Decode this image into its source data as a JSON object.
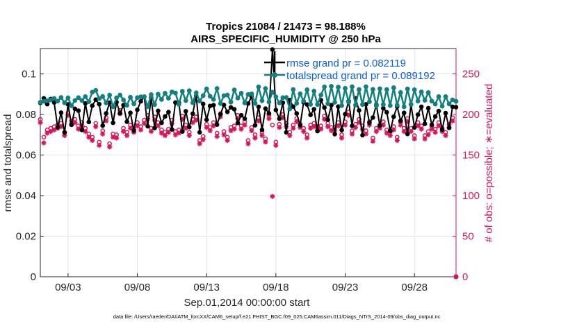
{
  "chart_data": {
    "type": "line",
    "title": "Tropics 21084 / 21473 = 98.188%",
    "subtitle": "AIRS_SPECIFIC_HUMIDITY @ 250 hPa",
    "xlabel": "Sep.01,2014 00:00:00 start",
    "ylabel_left": "rmse and totalspread",
    "ylabel_right": "# of obs: o=possible; ∗=evaluated",
    "xlim": [
      1.0,
      31.0
    ],
    "ylim_left": [
      0,
      0.1125
    ],
    "ylim_right": [
      0,
      281.25
    ],
    "x_ticks": [
      {
        "x": 3,
        "label": "09/03"
      },
      {
        "x": 8,
        "label": "09/08"
      },
      {
        "x": 13,
        "label": "09/13"
      },
      {
        "x": 18,
        "label": "09/18"
      },
      {
        "x": 23,
        "label": "09/23"
      },
      {
        "x": 28,
        "label": "09/28"
      }
    ],
    "y_ticks_left": [
      {
        "v": 0,
        "label": "0"
      },
      {
        "v": 0.02,
        "label": "0.02"
      },
      {
        "v": 0.04,
        "label": "0.04"
      },
      {
        "v": 0.06,
        "label": "0.06"
      },
      {
        "v": 0.08,
        "label": "0.08"
      },
      {
        "v": 0.1,
        "label": "0.1"
      }
    ],
    "y_ticks_right": [
      {
        "v": 0,
        "label": "0"
      },
      {
        "v": 50,
        "label": "50"
      },
      {
        "v": 100,
        "label": "100"
      },
      {
        "v": 150,
        "label": "150"
      },
      {
        "v": 200,
        "label": "200"
      },
      {
        "v": 250,
        "label": "250"
      }
    ],
    "grid": true,
    "legend_placement": "top-right",
    "colors": {
      "rmse": "#000000",
      "totalspread": "#128080",
      "obs": "#d6175c",
      "legend_text": "#0a5fe0",
      "grid": "#e4e4e4"
    },
    "series": [
      {
        "name": "rmse grand pr = 0.082119",
        "axis": "left",
        "marker": "star",
        "values": [
          0.0857,
          0.088,
          0.0851,
          0.0876,
          0.0859,
          0.0737,
          0.0809,
          0.0711,
          0.085,
          0.0749,
          0.0828,
          0.0819,
          0.0724,
          0.0855,
          0.0763,
          0.0843,
          0.0873,
          0.0851,
          0.0745,
          0.0805,
          0.0858,
          0.0759,
          0.0861,
          0.0806,
          0.0846,
          0.0764,
          0.0808,
          0.072,
          0.0823,
          0.0865,
          0.0887,
          0.0742,
          0.0883,
          0.0733,
          0.0818,
          0.0759,
          0.079,
          0.0812,
          0.0726,
          0.0859,
          0.0859,
          0.0716,
          0.0816,
          0.0738,
          0.0804,
          0.0892,
          0.0712,
          0.0852,
          0.0774,
          0.0842,
          0.0846,
          0.075,
          0.0801,
          0.0847,
          0.0813,
          0.0835,
          0.0826,
          0.0758,
          0.0796,
          0.0779,
          0.0854,
          0.0889,
          0.0747,
          0.0838,
          0.0724,
          0.0829,
          0.0805,
          0.112,
          0.0822,
          0.0779,
          0.0858,
          0.0712,
          0.0871,
          0.0839,
          0.0805,
          0.0747,
          0.086,
          0.0849,
          0.0798,
          0.0826,
          0.0718,
          0.0871,
          0.0834,
          0.0774,
          0.0846,
          0.0703,
          0.0839,
          0.0723,
          0.0802,
          0.0866,
          0.0744,
          0.088,
          0.082,
          0.0698,
          0.085,
          0.0759,
          0.0785,
          0.0848,
          0.0745,
          0.0831,
          0.0811,
          0.0719,
          0.0789,
          0.0839,
          0.0769,
          0.0808,
          0.0704,
          0.0849,
          0.0736,
          0.0799,
          0.0838,
          0.0754,
          0.0831,
          0.0749,
          0.079,
          0.0817,
          0.0725,
          0.0807,
          0.0734,
          0.0838,
          0.0836
        ]
      },
      {
        "name": "totalspread grand pr = 0.089192",
        "axis": "left",
        "marker": "circle",
        "values": [
          0.086,
          0.0865,
          0.0868,
          0.0872,
          0.0879,
          0.0866,
          0.0884,
          0.0858,
          0.0882,
          0.0843,
          0.0869,
          0.0883,
          0.0869,
          0.0888,
          0.0863,
          0.091,
          0.0919,
          0.0878,
          0.0889,
          0.0857,
          0.0896,
          0.0838,
          0.0882,
          0.0896,
          0.0872,
          0.0845,
          0.0885,
          0.0852,
          0.0883,
          0.0887,
          0.0888,
          0.0839,
          0.0898,
          0.0849,
          0.09,
          0.0874,
          0.0905,
          0.088,
          0.0911,
          0.0906,
          0.085,
          0.0914,
          0.0868,
          0.0917,
          0.0858,
          0.0907,
          0.0866,
          0.0893,
          0.0926,
          0.089,
          0.0874,
          0.0928,
          0.0854,
          0.0893,
          0.0896,
          0.0861,
          0.0921,
          0.0881,
          0.0905,
          0.0857,
          0.0899,
          0.0902,
          0.0855,
          0.0936,
          0.0868,
          0.0928,
          0.0862,
          0.091,
          0.0887,
          0.0857,
          0.0883,
          0.0884,
          0.0827,
          0.0923,
          0.0855,
          0.0902,
          0.0866,
          0.0922,
          0.085,
          0.0915,
          0.0849,
          0.0896,
          0.0936,
          0.0853,
          0.0939,
          0.086,
          0.0935,
          0.0844,
          0.0929,
          0.0861,
          0.0937,
          0.0846,
          0.0923,
          0.0849,
          0.0937,
          0.0863,
          0.0924,
          0.0842,
          0.0927,
          0.0849,
          0.0923,
          0.0844,
          0.0932,
          0.0846,
          0.0908,
          0.0838,
          0.0926,
          0.085,
          0.0922,
          0.0866,
          0.0911,
          0.087,
          0.0908,
          0.0866,
          0.0851,
          0.0888,
          0.0841,
          0.0888,
          0.0852,
          0.0872,
          0.0865
        ]
      },
      {
        "name": "obs possible",
        "axis": "right",
        "marker": "o",
        "values": [
          194,
          172,
          181,
          183,
          185,
          187,
          189,
          178,
          202,
          192,
          194,
          186,
          190,
          183,
          176,
          172,
          189,
          166,
          180,
          196,
          164,
          176,
          175,
          205,
          183,
          178,
          187,
          182,
          190,
          185,
          193,
          199,
          183,
          197,
          190,
          181,
          178,
          182,
          193,
          179,
          181,
          198,
          187,
          178,
          194,
          197,
          168,
          173,
          188,
          184,
          190,
          177,
          201,
          179,
          172,
          184,
          186,
          199,
          186,
          191,
          168,
          184,
          175,
          196,
          178,
          170,
          199,
          187,
          166,
          188,
          200,
          189,
          178,
          187,
          195,
          188,
          183,
          175,
          187,
          189,
          185,
          186,
          198,
          189,
          184,
          184,
          190,
          175,
          191,
          203,
          180,
          188,
          194,
          186,
          180,
          191,
          171,
          183,
          187,
          191,
          181,
          178,
          185,
          172,
          191,
          183,
          195,
          183,
          174,
          190,
          186,
          174,
          179,
          186,
          182,
          190,
          183,
          178,
          188,
          196,
          0
        ]
      },
      {
        "name": "obs evaluated",
        "axis": "right",
        "marker": "*",
        "values": [
          190,
          165,
          177,
          179,
          181,
          183,
          185,
          174,
          199,
          188,
          190,
          182,
          186,
          179,
          172,
          168,
          185,
          162,
          176,
          192,
          160,
          172,
          171,
          201,
          179,
          174,
          183,
          178,
          186,
          181,
          189,
          195,
          179,
          193,
          186,
          177,
          174,
          178,
          189,
          175,
          177,
          194,
          183,
          174,
          190,
          193,
          164,
          169,
          184,
          180,
          186,
          173,
          197,
          175,
          168,
          180,
          182,
          195,
          182,
          187,
          164,
          180,
          171,
          192,
          174,
          166,
          195,
          99,
          162,
          184,
          196,
          185,
          174,
          183,
          191,
          184,
          179,
          171,
          183,
          185,
          181,
          182,
          194,
          185,
          180,
          180,
          186,
          171,
          187,
          199,
          176,
          184,
          190,
          182,
          176,
          187,
          167,
          179,
          183,
          187,
          177,
          174,
          181,
          168,
          187,
          179,
          191,
          179,
          170,
          186,
          182,
          170,
          175,
          182,
          178,
          186,
          179,
          174,
          184,
          192,
          0
        ]
      }
    ]
  },
  "footnote": "data file: /Users/raeder/DAI/ATM_forcXX/CAM6_setup/f.e21.FHIST_BGC.f09_025.CAM6assim.011/Diags_NTrS_2014-09/obs_diag_output.nc"
}
